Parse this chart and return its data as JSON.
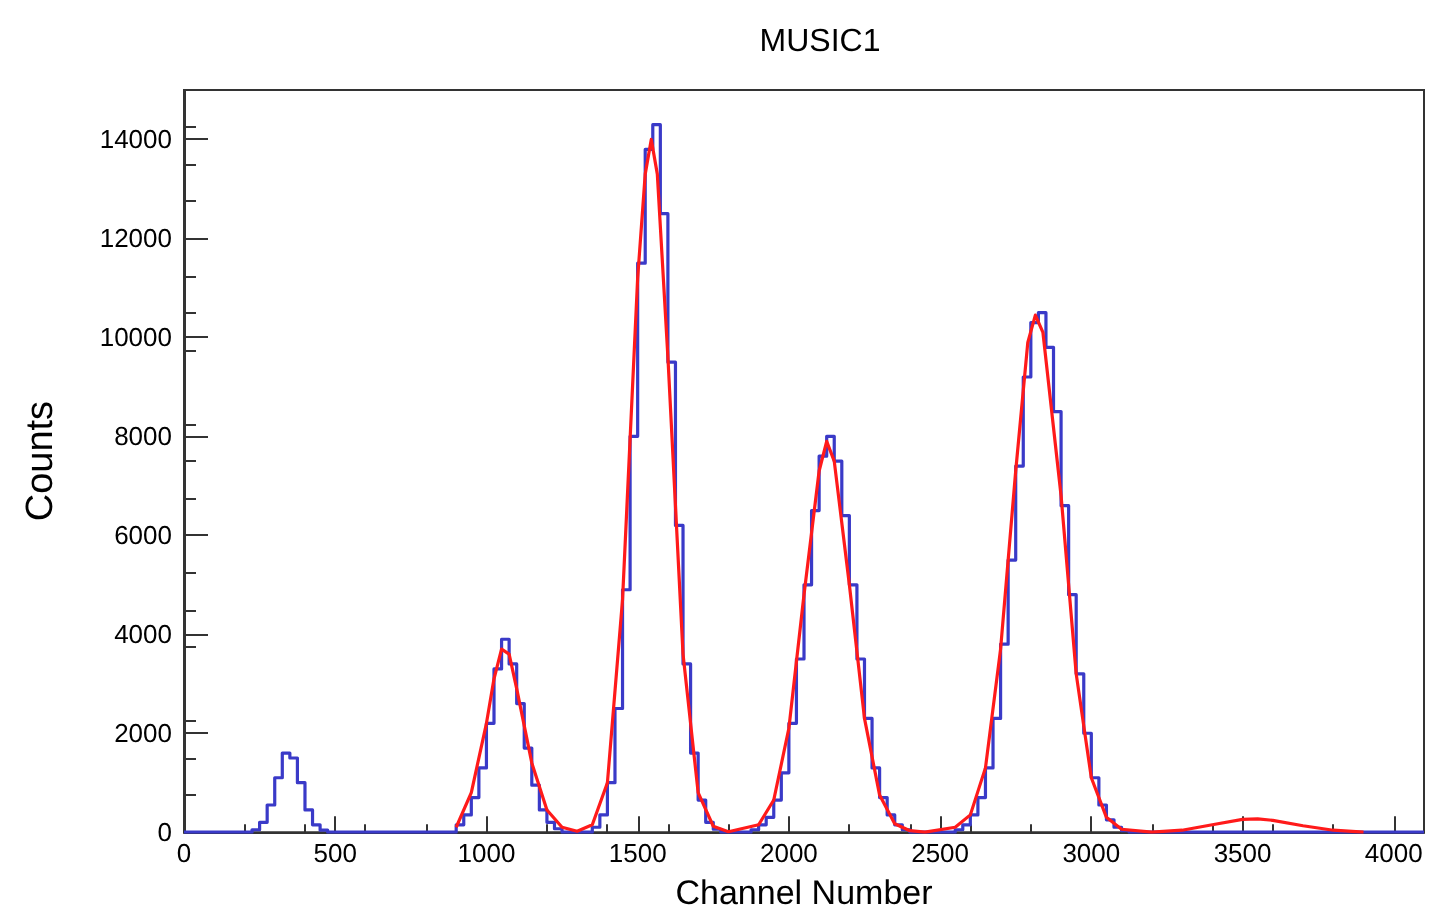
{
  "chart_data": {
    "type": "step",
    "title": "MUSIC1",
    "xlabel": "Channel Number",
    "ylabel": "Counts",
    "xlim": [
      0,
      4100
    ],
    "xticks": [
      0,
      500,
      1000,
      1500,
      2000,
      2500,
      3000,
      3500,
      4000
    ],
    "ylim": [
      0,
      15000
    ],
    "yticks": [
      0,
      2000,
      4000,
      6000,
      8000,
      10000,
      12000,
      14000
    ],
    "grid": false,
    "marker": "none",
    "line_style": "solid",
    "series": [
      {
        "color": "#3a3ac8",
        "x": [
          0,
          200,
          225,
          250,
          275,
          300,
          325,
          350,
          375,
          400,
          425,
          450,
          475,
          850,
          900,
          925,
          950,
          975,
          1000,
          1025,
          1050,
          1075,
          1100,
          1125,
          1150,
          1175,
          1200,
          1225,
          1250,
          1325,
          1350,
          1375,
          1400,
          1425,
          1450,
          1475,
          1500,
          1525,
          1550,
          1575,
          1600,
          1625,
          1650,
          1675,
          1700,
          1725,
          1750,
          1775,
          1850,
          1875,
          1900,
          1925,
          1950,
          1975,
          2000,
          2025,
          2050,
          2075,
          2100,
          2125,
          2150,
          2175,
          2200,
          2225,
          2250,
          2275,
          2300,
          2325,
          2350,
          2375,
          2400,
          2525,
          2550,
          2575,
          2600,
          2625,
          2650,
          2675,
          2700,
          2725,
          2750,
          2775,
          2800,
          2825,
          2850,
          2875,
          2900,
          2925,
          2950,
          2975,
          3000,
          3025,
          3050,
          3075,
          3100,
          3125,
          4100
        ],
        "values": [
          0,
          0,
          50,
          200,
          550,
          1100,
          1600,
          1500,
          1000,
          450,
          150,
          40,
          0,
          0,
          150,
          350,
          700,
          1300,
          2200,
          3300,
          3900,
          3400,
          2600,
          1700,
          950,
          450,
          200,
          70,
          0,
          0,
          100,
          350,
          1000,
          2500,
          4900,
          8000,
          11500,
          13800,
          14300,
          12500,
          9500,
          6200,
          3400,
          1600,
          650,
          200,
          60,
          0,
          0,
          50,
          150,
          300,
          650,
          1200,
          2200,
          3500,
          5000,
          6500,
          7600,
          8000,
          7500,
          6400,
          5000,
          3500,
          2300,
          1300,
          700,
          350,
          150,
          50,
          0,
          0,
          50,
          150,
          350,
          700,
          1300,
          2300,
          3800,
          5500,
          7400,
          9200,
          10300,
          10500,
          9800,
          8500,
          6600,
          4800,
          3200,
          2000,
          1100,
          550,
          250,
          100,
          30,
          0,
          0
        ]
      },
      {
        "type": "line",
        "color": "#ff1a1a",
        "x": [
          900,
          950,
          1000,
          1025,
          1050,
          1075,
          1100,
          1150,
          1200,
          1250,
          1300,
          1350,
          1400,
          1450,
          1500,
          1525,
          1545,
          1565,
          1600,
          1650,
          1700,
          1750,
          1800,
          1900,
          1950,
          2000,
          2050,
          2100,
          2125,
          2150,
          2200,
          2250,
          2300,
          2350,
          2400,
          2450,
          2550,
          2600,
          2650,
          2700,
          2750,
          2790,
          2815,
          2840,
          2900,
          2950,
          3000,
          3050,
          3100,
          3200,
          3300,
          3400,
          3500,
          3550,
          3600,
          3700,
          3800,
          3900
        ],
        "values": [
          100,
          800,
          2200,
          3100,
          3700,
          3600,
          2900,
          1400,
          450,
          100,
          20,
          150,
          1000,
          4700,
          11200,
          13300,
          14000,
          13300,
          9600,
          3600,
          800,
          120,
          10,
          150,
          650,
          2100,
          4800,
          7300,
          7900,
          7500,
          5000,
          2300,
          750,
          170,
          30,
          0,
          100,
          350,
          1300,
          3700,
          7300,
          9900,
          10450,
          10100,
          6800,
          3200,
          1100,
          300,
          60,
          0,
          40,
          150,
          260,
          270,
          240,
          130,
          40,
          0
        ]
      }
    ]
  }
}
